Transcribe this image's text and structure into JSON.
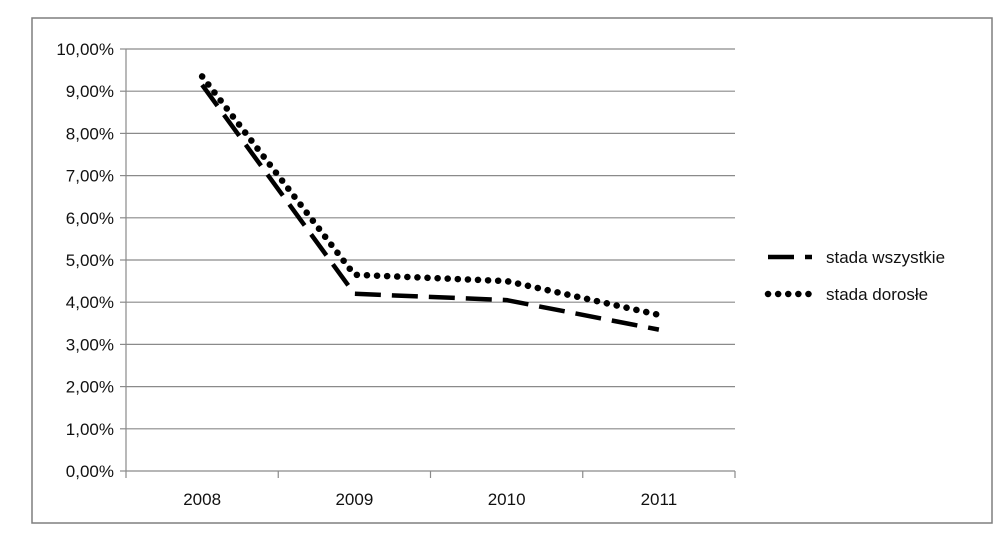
{
  "chart_data": {
    "type": "line",
    "categories": [
      "2008",
      "2009",
      "2010",
      "2011"
    ],
    "series": [
      {
        "name": "stada wszystkie",
        "values": [
          9.15,
          4.2,
          4.05,
          3.35
        ],
        "style": "dashed"
      },
      {
        "name": "stada dorosłe",
        "values": [
          9.35,
          4.65,
          4.5,
          3.7
        ],
        "style": "dotted"
      }
    ],
    "y_ticks": [
      "0,00%",
      "1,00%",
      "2,00%",
      "3,00%",
      "4,00%",
      "5,00%",
      "6,00%",
      "7,00%",
      "8,00%",
      "9,00%",
      "10,00%"
    ],
    "ylim": [
      0,
      10
    ],
    "y_unit": "%",
    "grid": true,
    "legend_position": "right",
    "colors": {
      "line": "#000000",
      "grid": "#8a8a8a",
      "frame": "#7f7f7f"
    }
  }
}
